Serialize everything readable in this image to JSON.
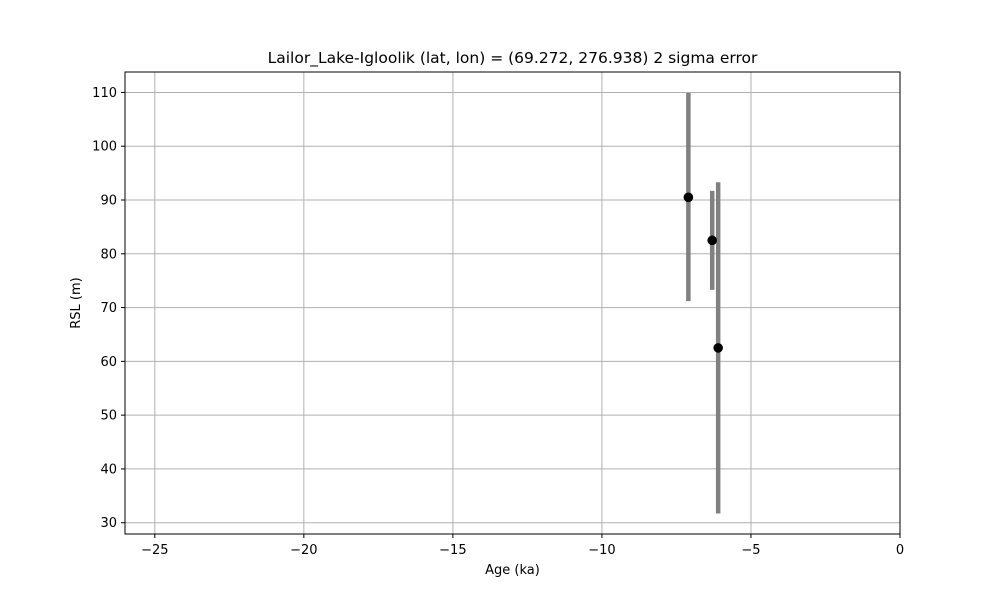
{
  "chart_data": {
    "type": "scatter",
    "title": "Lailor_Lake-Igloolik (lat, lon) = (69.272, 276.938)  2 sigma error",
    "xlabel": "Age (ka)",
    "ylabel": "RSL (m)",
    "xlim": [
      -26,
      0
    ],
    "ylim": [
      27.9,
      113.8
    ],
    "xticks": [
      -25,
      -20,
      -15,
      -10,
      -5,
      0
    ],
    "xtick_labels": [
      "−25",
      "−20",
      "−15",
      "−10",
      "−5",
      "0"
    ],
    "yticks": [
      30,
      40,
      50,
      60,
      70,
      80,
      90,
      100,
      110
    ],
    "ytick_labels": [
      "30",
      "40",
      "50",
      "60",
      "70",
      "80",
      "90",
      "100",
      "110"
    ],
    "grid": true,
    "legend": "none",
    "points": [
      {
        "x": -7.1,
        "y": 90.5,
        "err_low": 71.2,
        "err_high": 109.9
      },
      {
        "x": -6.3,
        "y": 82.5,
        "err_low": 73.3,
        "err_high": 91.7
      },
      {
        "x": -6.1,
        "y": 62.5,
        "err_low": 31.7,
        "err_high": 93.3
      }
    ],
    "colors": {
      "point": "#000000",
      "errorbar": "#808080",
      "grid": "#b0b0b0",
      "axes": "#000000"
    }
  }
}
